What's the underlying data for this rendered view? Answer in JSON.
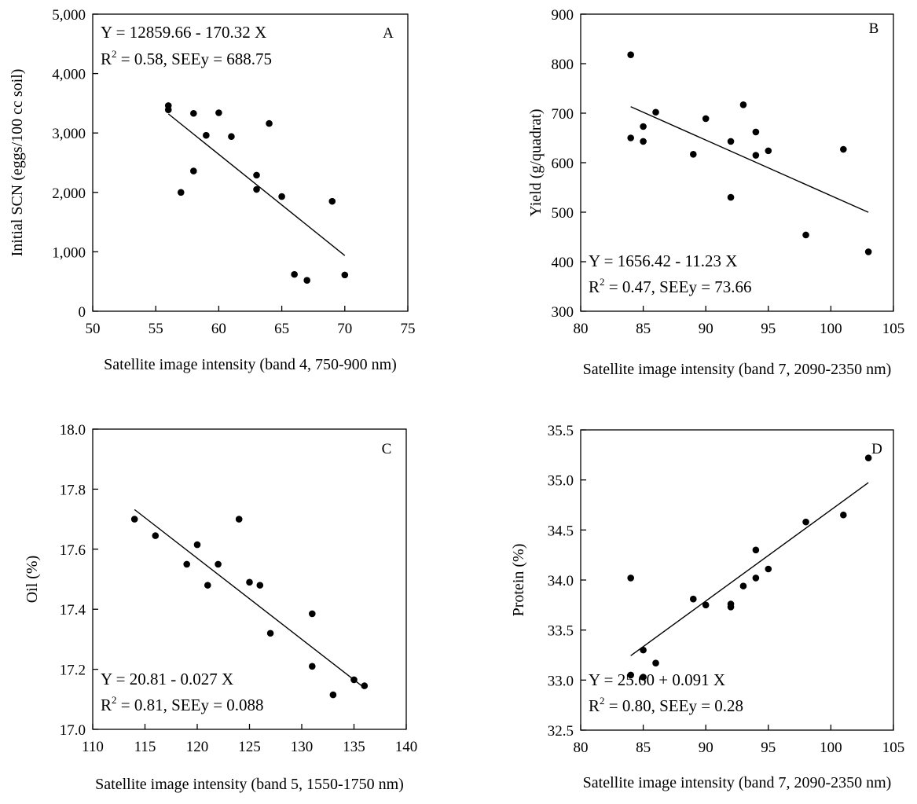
{
  "chart_data": [
    {
      "type": "scatter",
      "panel_label": "A",
      "xlabel": "Satellite image intensity (band 4, 750-900 nm)",
      "ylabel": "Initial SCN (eggs/100 cc soil)",
      "xlim": [
        50,
        75
      ],
      "ylim": [
        0,
        5000
      ],
      "xticks": [
        50,
        55,
        60,
        65,
        70,
        75
      ],
      "yticks": [
        0,
        1000,
        2000,
        3000,
        4000,
        5000
      ],
      "xtick_labels": [
        "50",
        "55",
        "60",
        "65",
        "70",
        "75"
      ],
      "ytick_labels": [
        "0",
        "1,000",
        "2,000",
        "3,000",
        "4,000",
        "5,000"
      ],
      "equation": "Y = 12859.66 - 170.32 X",
      "r2_value": " = 0.58, SEEy = 688.75",
      "annotation_position": "top-left",
      "fit": {
        "intercept": 12859.66,
        "slope": -170.32,
        "x_range": [
          56,
          70
        ]
      },
      "points": [
        {
          "x": 56,
          "y": 3460
        },
        {
          "x": 56,
          "y": 3390
        },
        {
          "x": 57,
          "y": 2000
        },
        {
          "x": 58,
          "y": 3330
        },
        {
          "x": 58,
          "y": 2360
        },
        {
          "x": 59,
          "y": 2960
        },
        {
          "x": 60,
          "y": 3340
        },
        {
          "x": 61,
          "y": 2940
        },
        {
          "x": 63,
          "y": 2290
        },
        {
          "x": 63,
          "y": 2050
        },
        {
          "x": 64,
          "y": 3160
        },
        {
          "x": 65,
          "y": 1930
        },
        {
          "x": 66,
          "y": 620
        },
        {
          "x": 67,
          "y": 520
        },
        {
          "x": 69,
          "y": 1850
        },
        {
          "x": 70,
          "y": 610
        }
      ]
    },
    {
      "type": "scatter",
      "panel_label": "B",
      "xlabel": "Satellite image intensity (band 7, 2090-2350 nm)",
      "ylabel": "Yield (g/quadrat)",
      "xlim": [
        80,
        105
      ],
      "ylim": [
        300,
        900
      ],
      "xticks": [
        80,
        85,
        90,
        95,
        100,
        105
      ],
      "yticks": [
        300,
        400,
        500,
        600,
        700,
        800,
        900
      ],
      "xtick_labels": [
        "80",
        "85",
        "90",
        "95",
        "100",
        "105"
      ],
      "ytick_labels": [
        "300",
        "400",
        "500",
        "600",
        "700",
        "800",
        "900"
      ],
      "equation": "Y = 1656.42 - 11.23 X",
      "r2_value": " = 0.47, SEEy = 73.66",
      "annotation_position": "bottom-left",
      "fit": {
        "intercept": 1656.42,
        "slope": -11.23,
        "x_range": [
          84,
          103
        ]
      },
      "points": [
        {
          "x": 84,
          "y": 818
        },
        {
          "x": 84,
          "y": 650
        },
        {
          "x": 85,
          "y": 673
        },
        {
          "x": 85,
          "y": 643
        },
        {
          "x": 86,
          "y": 702
        },
        {
          "x": 89,
          "y": 617
        },
        {
          "x": 90,
          "y": 689
        },
        {
          "x": 92,
          "y": 643
        },
        {
          "x": 92,
          "y": 530
        },
        {
          "x": 93,
          "y": 717
        },
        {
          "x": 94,
          "y": 662
        },
        {
          "x": 94,
          "y": 615
        },
        {
          "x": 95,
          "y": 624
        },
        {
          "x": 98,
          "y": 454
        },
        {
          "x": 101,
          "y": 627
        },
        {
          "x": 103,
          "y": 420
        }
      ]
    },
    {
      "type": "scatter",
      "panel_label": "C",
      "xlabel": "Satellite image intensity (band 5, 1550-1750 nm)",
      "ylabel": "Oil (%)",
      "xlim": [
        110,
        140
      ],
      "ylim": [
        17.0,
        18.0
      ],
      "xticks": [
        110,
        115,
        120,
        125,
        130,
        135,
        140
      ],
      "yticks": [
        17.0,
        17.2,
        17.4,
        17.6,
        17.8,
        18.0
      ],
      "xtick_labels": [
        "110",
        "115",
        "120",
        "125",
        "130",
        "135",
        "140"
      ],
      "ytick_labels": [
        "17.0",
        "17.2",
        "17.4",
        "17.6",
        "17.8",
        "18.0"
      ],
      "equation": "Y = 20.81 - 0.027 X",
      "r2_value": " = 0.81, SEEy = 0.088",
      "annotation_position": "bottom-left",
      "fit": {
        "intercept": 20.81,
        "slope": -0.027,
        "x_range": [
          114,
          136
        ]
      },
      "points": [
        {
          "x": 114,
          "y": 17.7
        },
        {
          "x": 116,
          "y": 17.645
        },
        {
          "x": 119,
          "y": 17.55
        },
        {
          "x": 120,
          "y": 17.615
        },
        {
          "x": 121,
          "y": 17.48
        },
        {
          "x": 122,
          "y": 17.55
        },
        {
          "x": 124,
          "y": 17.7
        },
        {
          "x": 125,
          "y": 17.49
        },
        {
          "x": 126,
          "y": 17.48
        },
        {
          "x": 127,
          "y": 17.32
        },
        {
          "x": 131,
          "y": 17.385
        },
        {
          "x": 131,
          "y": 17.21
        },
        {
          "x": 133,
          "y": 17.115
        },
        {
          "x": 135,
          "y": 17.165
        },
        {
          "x": 136,
          "y": 17.145
        }
      ]
    },
    {
      "type": "scatter",
      "panel_label": "D",
      "xlabel": "Satellite image intensity (band 7, 2090-2350 nm)",
      "ylabel": "Protein (%)",
      "xlim": [
        80,
        105
      ],
      "ylim": [
        32.5,
        35.5
      ],
      "xticks": [
        80,
        85,
        90,
        95,
        100,
        105
      ],
      "yticks": [
        32.5,
        33.0,
        33.5,
        34.0,
        34.5,
        35.0,
        35.5
      ],
      "xtick_labels": [
        "80",
        "85",
        "90",
        "95",
        "100",
        "105"
      ],
      "ytick_labels": [
        "32.5",
        "33.0",
        "33.5",
        "34.0",
        "34.5",
        "35.0",
        "35.5"
      ],
      "equation": "Y = 25.60 + 0.091 X",
      "r2_value": " = 0.80, SEEy = 0.28",
      "annotation_position": "bottom-left",
      "fit": {
        "intercept": 25.6,
        "slope": 0.091,
        "x_range": [
          84,
          103
        ]
      },
      "points": [
        {
          "x": 84,
          "y": 34.02
        },
        {
          "x": 84,
          "y": 33.05
        },
        {
          "x": 85,
          "y": 33.3
        },
        {
          "x": 85,
          "y": 33.03
        },
        {
          "x": 86,
          "y": 33.17
        },
        {
          "x": 89,
          "y": 33.81
        },
        {
          "x": 90,
          "y": 33.75
        },
        {
          "x": 92,
          "y": 33.76
        },
        {
          "x": 92,
          "y": 33.73
        },
        {
          "x": 93,
          "y": 33.94
        },
        {
          "x": 94,
          "y": 34.3
        },
        {
          "x": 94,
          "y": 34.02
        },
        {
          "x": 95,
          "y": 34.11
        },
        {
          "x": 98,
          "y": 34.58
        },
        {
          "x": 101,
          "y": 34.65
        },
        {
          "x": 103,
          "y": 35.22
        }
      ]
    }
  ]
}
